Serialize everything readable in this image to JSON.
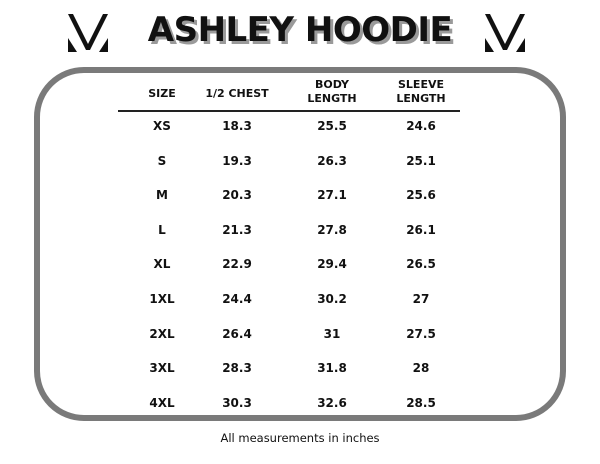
{
  "title": "ASHLEY HOODIE",
  "brand_logo_icon": "v-logo-icon",
  "colors": {
    "frame": "#7a7a7a",
    "text": "#111111",
    "title_shadow": "#9a9a9a"
  },
  "table": {
    "headers": [
      {
        "line1": "SIZE",
        "line2": ""
      },
      {
        "line1": "1/2 CHEST",
        "line2": ""
      },
      {
        "line1": "BODY",
        "line2": "LENGTH"
      },
      {
        "line1": "SLEEVE",
        "line2": "LENGTH"
      }
    ],
    "rows": [
      [
        "XS",
        "18.3",
        "25.5",
        "24.6"
      ],
      [
        "S",
        "19.3",
        "26.3",
        "25.1"
      ],
      [
        "M",
        "20.3",
        "27.1",
        "25.6"
      ],
      [
        "L",
        "21.3",
        "27.8",
        "26.1"
      ],
      [
        "XL",
        "22.9",
        "29.4",
        "26.5"
      ],
      [
        "1XL",
        "24.4",
        "30.2",
        "27"
      ],
      [
        "2XL",
        "26.4",
        "31",
        "27.5"
      ],
      [
        "3XL",
        "28.3",
        "31.8",
        "28"
      ],
      [
        "4XL",
        "30.3",
        "32.6",
        "28.5"
      ]
    ]
  },
  "footer": "All measurements in inches"
}
